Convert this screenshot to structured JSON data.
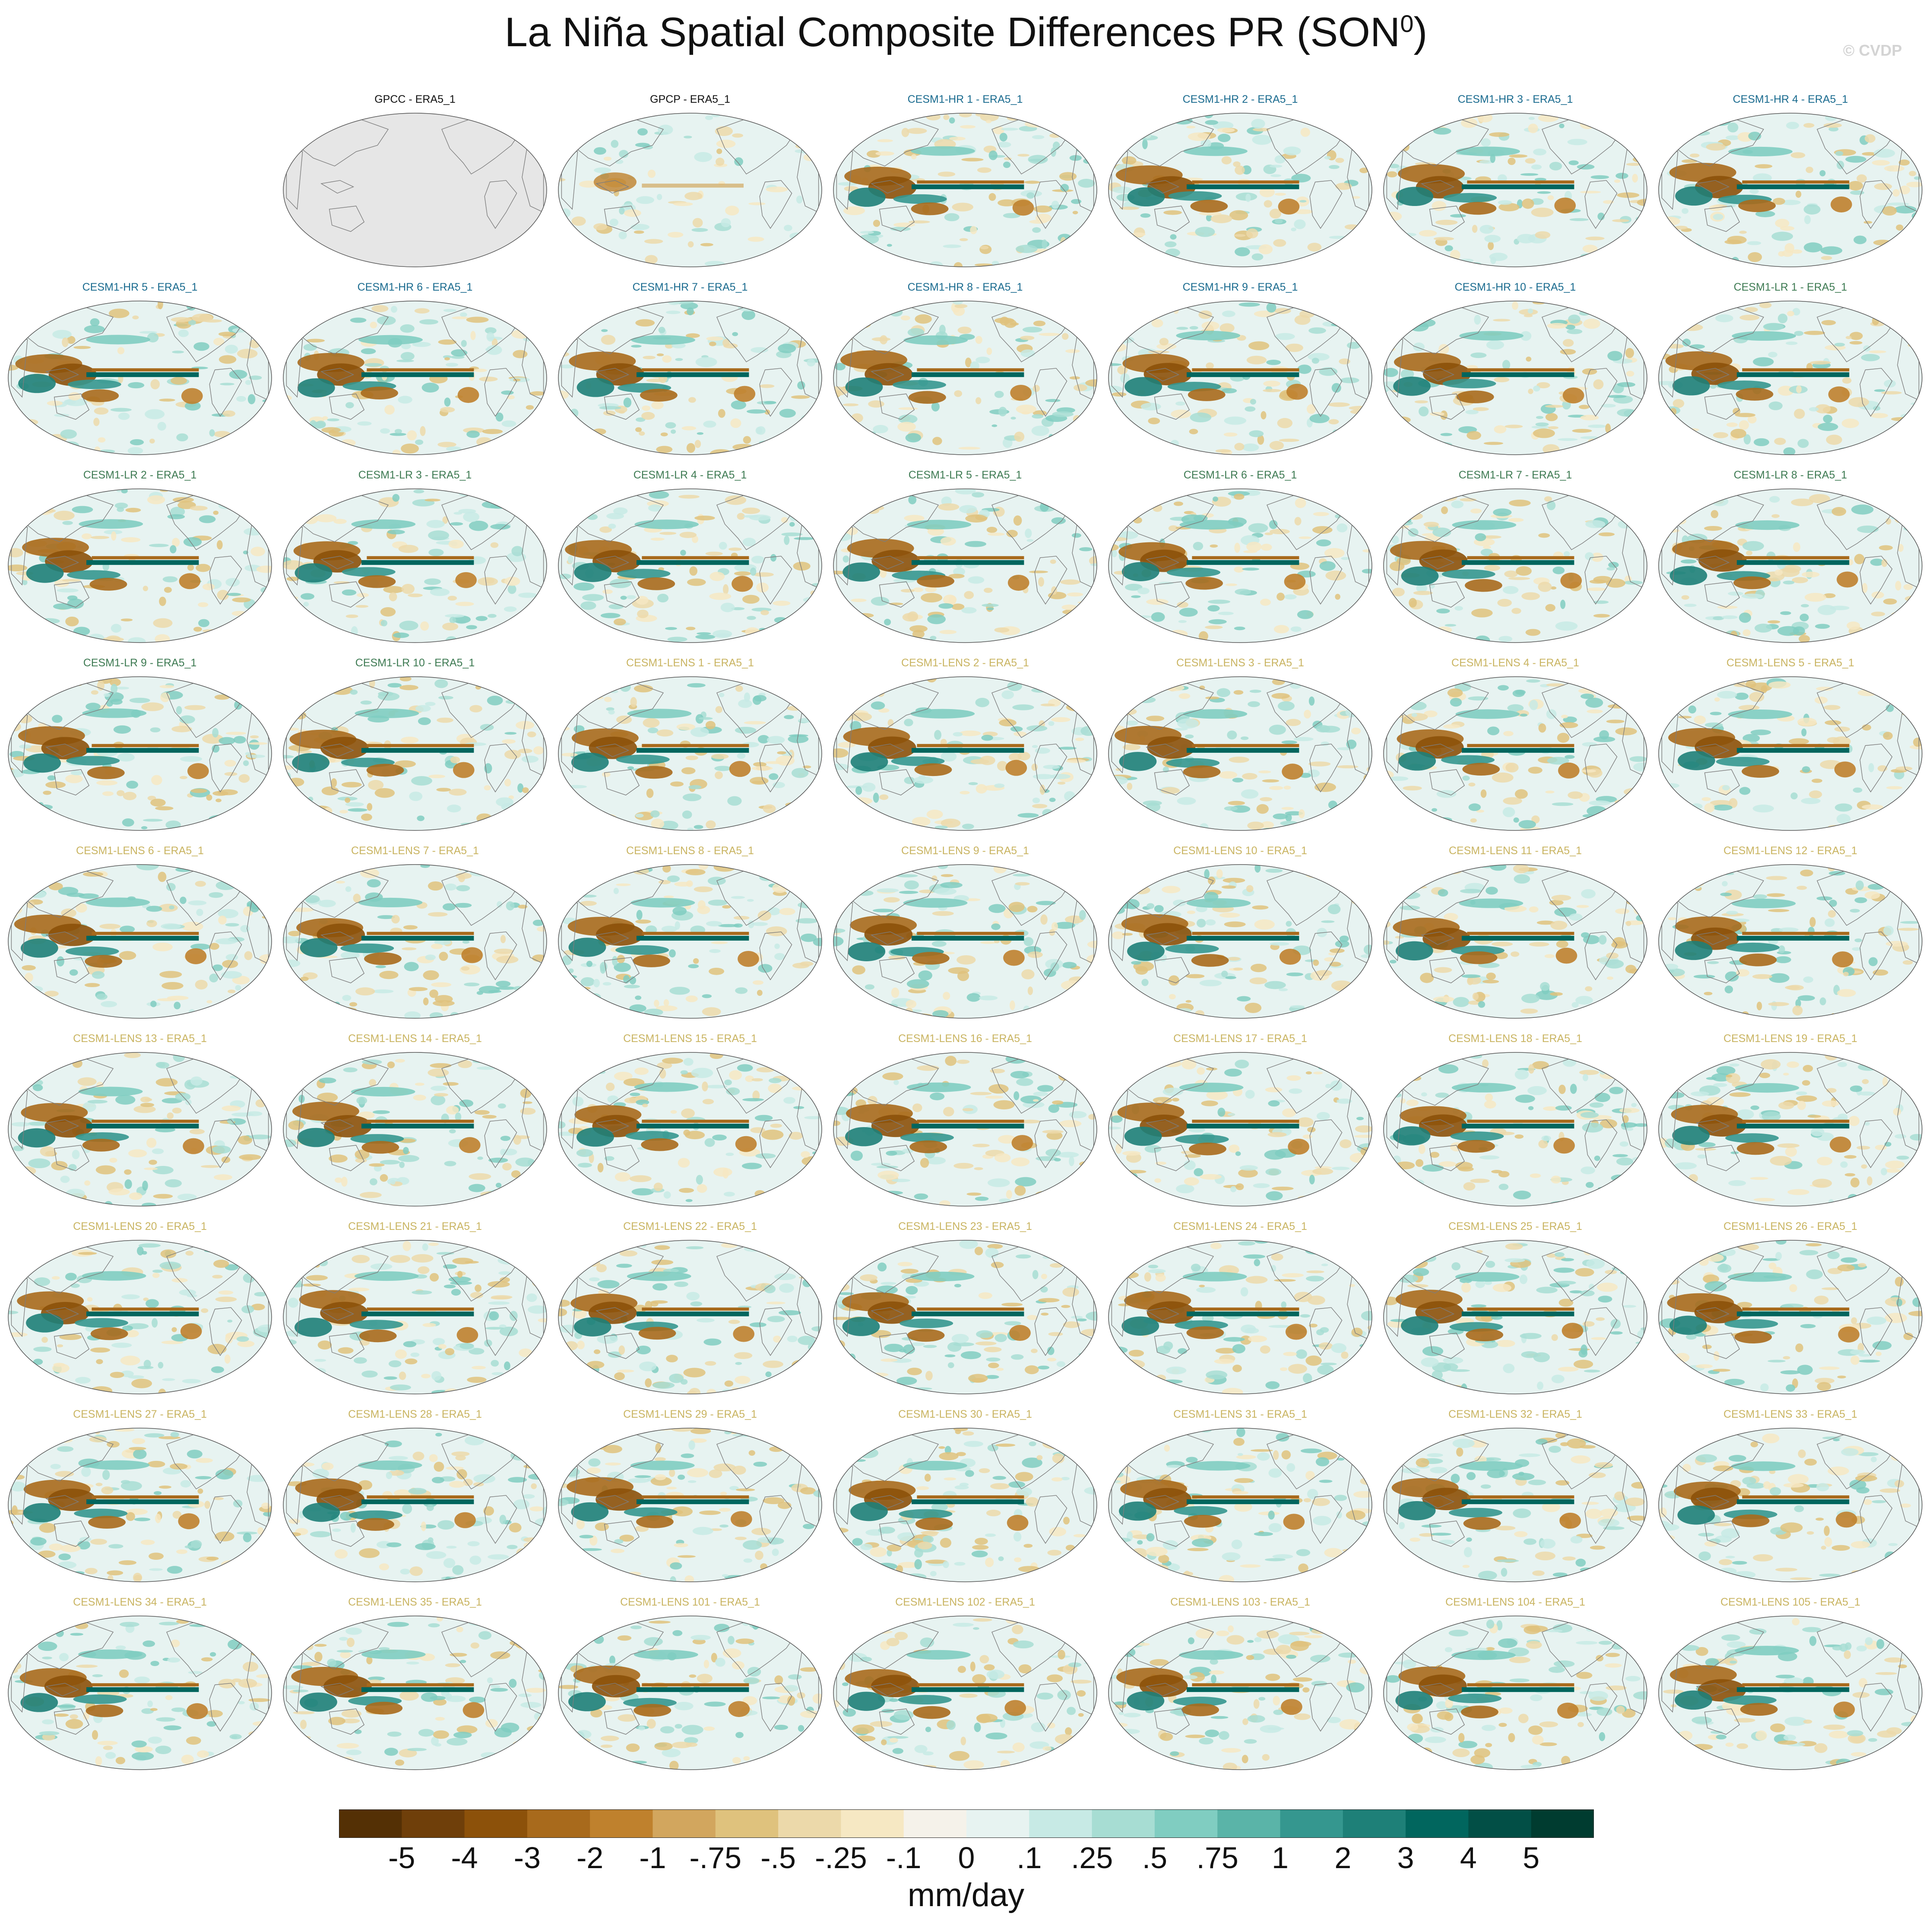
{
  "title": {
    "main": "La Niña Spatial Composite Differences PR (SON",
    "sup": "0",
    "close": ")"
  },
  "watermark": "© CVDP",
  "colors": {
    "observations_title": "#111111",
    "cesm1_hr_title": "#1a6b8f",
    "cesm1_lr_title": "#3d7a52",
    "cesm1_lens_title": "#c9b461",
    "missing_data": "#e6e6e6",
    "coastline": "#7d7d7d"
  },
  "chart_data": {
    "type": "heatmap",
    "title": "La Niña Spatial Composite Differences PR (SON0)",
    "projection": "Robinson (global, Pacific-centered)",
    "variable": "PR",
    "season": "SON0",
    "units": "mm/day",
    "layout": {
      "columns": 7,
      "rows": 9,
      "first_row_starts_at_column": 2
    },
    "panels": [
      {
        "label": "GPCC - ERA5_1",
        "group": "obs",
        "pattern": "missing"
      },
      {
        "label": "GPCP - ERA5_1",
        "group": "obs",
        "pattern": "weak"
      },
      {
        "label": "CESM1-HR 1 - ERA5_1",
        "group": "hr",
        "pattern": "strong"
      },
      {
        "label": "CESM1-HR 2 - ERA5_1",
        "group": "hr",
        "pattern": "strong"
      },
      {
        "label": "CESM1-HR 3 - ERA5_1",
        "group": "hr",
        "pattern": "strong"
      },
      {
        "label": "CESM1-HR 4 - ERA5_1",
        "group": "hr",
        "pattern": "strong"
      },
      {
        "label": "CESM1-HR 5 - ERA5_1",
        "group": "hr",
        "pattern": "strong"
      },
      {
        "label": "CESM1-HR 6 - ERA5_1",
        "group": "hr",
        "pattern": "strong"
      },
      {
        "label": "CESM1-HR 7 - ERA5_1",
        "group": "hr",
        "pattern": "strong"
      },
      {
        "label": "CESM1-HR 8 - ERA5_1",
        "group": "hr",
        "pattern": "strong"
      },
      {
        "label": "CESM1-HR 9 - ERA5_1",
        "group": "hr",
        "pattern": "strong"
      },
      {
        "label": "CESM1-HR 10 - ERA5_1",
        "group": "hr",
        "pattern": "strong"
      },
      {
        "label": "CESM1-LR 1 - ERA5_1",
        "group": "lr",
        "pattern": "strong"
      },
      {
        "label": "CESM1-LR 2 - ERA5_1",
        "group": "lr",
        "pattern": "strong"
      },
      {
        "label": "CESM1-LR 3 - ERA5_1",
        "group": "lr",
        "pattern": "strong"
      },
      {
        "label": "CESM1-LR 4 - ERA5_1",
        "group": "lr",
        "pattern": "strong"
      },
      {
        "label": "CESM1-LR 5 - ERA5_1",
        "group": "lr",
        "pattern": "strong"
      },
      {
        "label": "CESM1-LR 6 - ERA5_1",
        "group": "lr",
        "pattern": "strong"
      },
      {
        "label": "CESM1-LR 7 - ERA5_1",
        "group": "lr",
        "pattern": "strong"
      },
      {
        "label": "CESM1-LR 8 - ERA5_1",
        "group": "lr",
        "pattern": "strong"
      },
      {
        "label": "CESM1-LR 9 - ERA5_1",
        "group": "lr",
        "pattern": "strong"
      },
      {
        "label": "CESM1-LR 10 - ERA5_1",
        "group": "lr",
        "pattern": "strong"
      },
      {
        "label": "CESM1-LENS 1 - ERA5_1",
        "group": "lens",
        "pattern": "strong"
      },
      {
        "label": "CESM1-LENS 2 - ERA5_1",
        "group": "lens",
        "pattern": "strong"
      },
      {
        "label": "CESM1-LENS 3 - ERA5_1",
        "group": "lens",
        "pattern": "strong"
      },
      {
        "label": "CESM1-LENS 4 - ERA5_1",
        "group": "lens",
        "pattern": "strong"
      },
      {
        "label": "CESM1-LENS 5 - ERA5_1",
        "group": "lens",
        "pattern": "strong"
      },
      {
        "label": "CESM1-LENS 6 - ERA5_1",
        "group": "lens",
        "pattern": "strong"
      },
      {
        "label": "CESM1-LENS 7 - ERA5_1",
        "group": "lens",
        "pattern": "strong"
      },
      {
        "label": "CESM1-LENS 8 - ERA5_1",
        "group": "lens",
        "pattern": "strong"
      },
      {
        "label": "CESM1-LENS 9 - ERA5_1",
        "group": "lens",
        "pattern": "strong"
      },
      {
        "label": "CESM1-LENS 10 - ERA5_1",
        "group": "lens",
        "pattern": "strong"
      },
      {
        "label": "CESM1-LENS 11 - ERA5_1",
        "group": "lens",
        "pattern": "strong"
      },
      {
        "label": "CESM1-LENS 12 - ERA5_1",
        "group": "lens",
        "pattern": "strong"
      },
      {
        "label": "CESM1-LENS 13 - ERA5_1",
        "group": "lens",
        "pattern": "strong"
      },
      {
        "label": "CESM1-LENS 14 - ERA5_1",
        "group": "lens",
        "pattern": "strong"
      },
      {
        "label": "CESM1-LENS 15 - ERA5_1",
        "group": "lens",
        "pattern": "strong"
      },
      {
        "label": "CESM1-LENS 16 - ERA5_1",
        "group": "lens",
        "pattern": "strong"
      },
      {
        "label": "CESM1-LENS 17 - ERA5_1",
        "group": "lens",
        "pattern": "strong"
      },
      {
        "label": "CESM1-LENS 18 - ERA5_1",
        "group": "lens",
        "pattern": "strong"
      },
      {
        "label": "CESM1-LENS 19 - ERA5_1",
        "group": "lens",
        "pattern": "strong"
      },
      {
        "label": "CESM1-LENS 20 - ERA5_1",
        "group": "lens",
        "pattern": "strong"
      },
      {
        "label": "CESM1-LENS 21 - ERA5_1",
        "group": "lens",
        "pattern": "strong"
      },
      {
        "label": "CESM1-LENS 22 - ERA5_1",
        "group": "lens",
        "pattern": "strong"
      },
      {
        "label": "CESM1-LENS 23 - ERA5_1",
        "group": "lens",
        "pattern": "strong"
      },
      {
        "label": "CESM1-LENS 24 - ERA5_1",
        "group": "lens",
        "pattern": "strong"
      },
      {
        "label": "CESM1-LENS 25 - ERA5_1",
        "group": "lens",
        "pattern": "strong"
      },
      {
        "label": "CESM1-LENS 26 - ERA5_1",
        "group": "lens",
        "pattern": "strong"
      },
      {
        "label": "CESM1-LENS 27 - ERA5_1",
        "group": "lens",
        "pattern": "strong"
      },
      {
        "label": "CESM1-LENS 28 - ERA5_1",
        "group": "lens",
        "pattern": "strong"
      },
      {
        "label": "CESM1-LENS 29 - ERA5_1",
        "group": "lens",
        "pattern": "strong"
      },
      {
        "label": "CESM1-LENS 30 - ERA5_1",
        "group": "lens",
        "pattern": "strong"
      },
      {
        "label": "CESM1-LENS 31 - ERA5_1",
        "group": "lens",
        "pattern": "strong"
      },
      {
        "label": "CESM1-LENS 32 - ERA5_1",
        "group": "lens",
        "pattern": "strong"
      },
      {
        "label": "CESM1-LENS 33 - ERA5_1",
        "group": "lens",
        "pattern": "strong"
      },
      {
        "label": "CESM1-LENS 34 - ERA5_1",
        "group": "lens",
        "pattern": "strong"
      },
      {
        "label": "CESM1-LENS 35 - ERA5_1",
        "group": "lens",
        "pattern": "strong"
      },
      {
        "label": "CESM1-LENS 101 - ERA5_1",
        "group": "lens",
        "pattern": "strong"
      },
      {
        "label": "CESM1-LENS 102 - ERA5_1",
        "group": "lens",
        "pattern": "strong"
      },
      {
        "label": "CESM1-LENS 103 - ERA5_1",
        "group": "lens",
        "pattern": "strong"
      },
      {
        "label": "CESM1-LENS 104 - ERA5_1",
        "group": "lens",
        "pattern": "strong"
      },
      {
        "label": "CESM1-LENS 105 - ERA5_1",
        "group": "lens",
        "pattern": "strong"
      }
    ],
    "colorbar": {
      "orientation": "horizontal",
      "units": "mm/day",
      "tick_labels": [
        "-5",
        "-4",
        "-3",
        "-2",
        "-1",
        "-.75",
        "-.5",
        "-.25",
        "-.1",
        "0",
        ".1",
        ".25",
        ".5",
        ".75",
        "1",
        "2",
        "3",
        "4",
        "5"
      ],
      "colors": [
        "#543005",
        "#6f3f0a",
        "#8c510a",
        "#a86a1c",
        "#bf812d",
        "#d2a65e",
        "#dfc27d",
        "#ecd9aa",
        "#f6e8c3",
        "#f5f2ea",
        "#e7f3f1",
        "#c7eae5",
        "#a7ddd3",
        "#80cdc1",
        "#5ab4a8",
        "#35978f",
        "#1e8078",
        "#01665e",
        "#024f46",
        "#003c30"
      ]
    }
  }
}
